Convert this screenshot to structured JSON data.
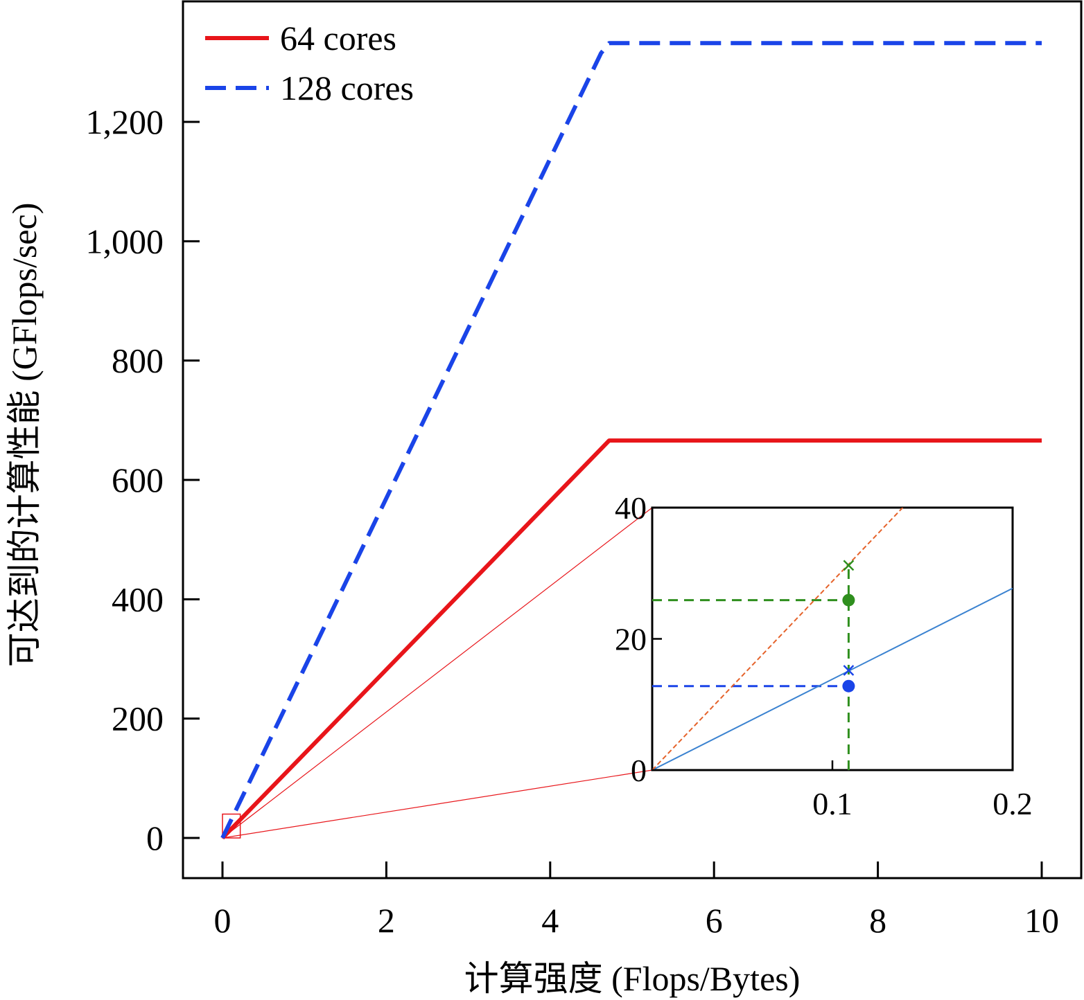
{
  "chart_data": {
    "type": "line",
    "title": "",
    "xlabel": "计算强度 (Flops/Bytes)",
    "ylabel": "可达到的计算性能 (GFlops/sec)",
    "xlim": [
      -0.5,
      10.5
    ],
    "ylim": [
      -65,
      1400
    ],
    "xticks": [
      0,
      2,
      4,
      6,
      8,
      10
    ],
    "xtick_labels": [
      "0",
      "2",
      "4",
      "6",
      "8",
      "10"
    ],
    "yticks": [
      0,
      200,
      400,
      600,
      800,
      1000,
      1200
    ],
    "ytick_labels": [
      "0",
      "200",
      "400",
      "600",
      "800",
      "1,000",
      "1,200"
    ],
    "legend_position": "top-left",
    "grid": false,
    "series": [
      {
        "name": "64 cores",
        "style": "solid",
        "color": "#e8151a",
        "x": [
          0,
          4.72,
          10
        ],
        "y": [
          0,
          666,
          666
        ]
      },
      {
        "name": "128 cores",
        "style": "dashed",
        "color": "#1a44e8",
        "x": [
          0,
          4.62,
          4.72,
          10
        ],
        "y": [
          0,
          1315,
          1332,
          1332
        ]
      }
    ],
    "inset": {
      "xlim": [
        0,
        0.2
      ],
      "ylim": [
        0,
        40
      ],
      "xticks": [
        0.1,
        0.2
      ],
      "xtick_labels": [
        "0.1",
        "0.2"
      ],
      "yticks": [
        0,
        20,
        40
      ],
      "ytick_labels": [
        "0",
        "20",
        "40"
      ],
      "zoom_region": {
        "x": [
          0,
          0.2
        ],
        "y": [
          0,
          40
        ]
      },
      "lines": [
        {
          "style": "solid",
          "color": "#3a82d0",
          "x": [
            0,
            0.2
          ],
          "y": [
            0,
            27.7
          ]
        },
        {
          "style": "dashed",
          "color": "#e5622a",
          "x": [
            0,
            0.139
          ],
          "y": [
            0,
            40
          ]
        }
      ],
      "markers": [
        {
          "shape": "x",
          "color": "#2f8f1e",
          "x": 0.109,
          "y": 31.2
        },
        {
          "shape": "circle",
          "color": "#2f8f1e",
          "x": 0.109,
          "y": 25.9
        },
        {
          "shape": "x",
          "color": "#1a44e8",
          "x": 0.109,
          "y": 15.2
        },
        {
          "shape": "circle",
          "color": "#1a44e8",
          "x": 0.109,
          "y": 12.8
        }
      ],
      "guides": [
        {
          "color": "#2f8f1e",
          "orientation": "horizontal",
          "y": 25.9,
          "x": [
            0,
            0.109
          ]
        },
        {
          "color": "#1a44e8",
          "orientation": "horizontal",
          "y": 12.8,
          "x": [
            0,
            0.109
          ]
        },
        {
          "color": "#2f8f1e",
          "orientation": "vertical",
          "x": 0.109,
          "y": [
            0,
            31.2
          ]
        }
      ]
    }
  }
}
